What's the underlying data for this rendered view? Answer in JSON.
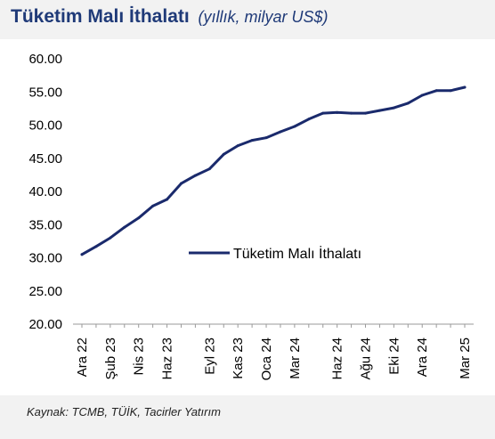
{
  "title": {
    "main": "Tüketim Malı İthalatı",
    "unit": "(yıllık, milyar US$)"
  },
  "source": "Kaynak: TCMB, TÜİK, Tacirler Yatırım",
  "colors": {
    "series": "#1a2a6c",
    "title": "#1f3a78"
  },
  "chart_data": {
    "type": "line",
    "title": "Tüketim Malı İthalatı",
    "ylim": [
      20,
      60
    ],
    "yticks": [
      "20.00",
      "25.00",
      "30.00",
      "35.00",
      "40.00",
      "45.00",
      "50.00",
      "55.00",
      "60.00"
    ],
    "xtick_labels": [
      "Ara 22",
      "Şub 23",
      "Nis 23",
      "Haz 23",
      "Eyl 23",
      "Kas 23",
      "Oca 24",
      "Mar 24",
      "Haz 24",
      "Ağu 24",
      "Eki 24",
      "Ara 24",
      "Mar 25"
    ],
    "x": [
      "Ara 22",
      "Oca 23",
      "Şub 23",
      "Mar 23",
      "Nis 23",
      "May 23",
      "Haz 23",
      "Tem 23",
      "Ağu 23",
      "Eyl 23",
      "Eki 23",
      "Kas 23",
      "Ara 23",
      "Oca 24",
      "Şub 24",
      "Mar 24",
      "Nis 24",
      "May 24",
      "Haz 24",
      "Tem 24",
      "Ağu 24",
      "Eyl 24",
      "Eki 24",
      "Kas 24",
      "Ara 24",
      "Oca 25",
      "Şub 25",
      "Mar 25"
    ],
    "series": [
      {
        "name": "Tüketim Malı İthalatı",
        "values": [
          30.5,
          31.7,
          33.0,
          34.6,
          36.0,
          37.8,
          38.8,
          41.2,
          42.4,
          43.4,
          45.6,
          46.9,
          47.7,
          48.1,
          49.0,
          49.8,
          50.9,
          51.8,
          51.9,
          51.8,
          51.8,
          52.2,
          52.6,
          53.3,
          54.5,
          55.2,
          55.2,
          55.7
        ]
      }
    ],
    "grid": false,
    "legend": "center-right"
  }
}
